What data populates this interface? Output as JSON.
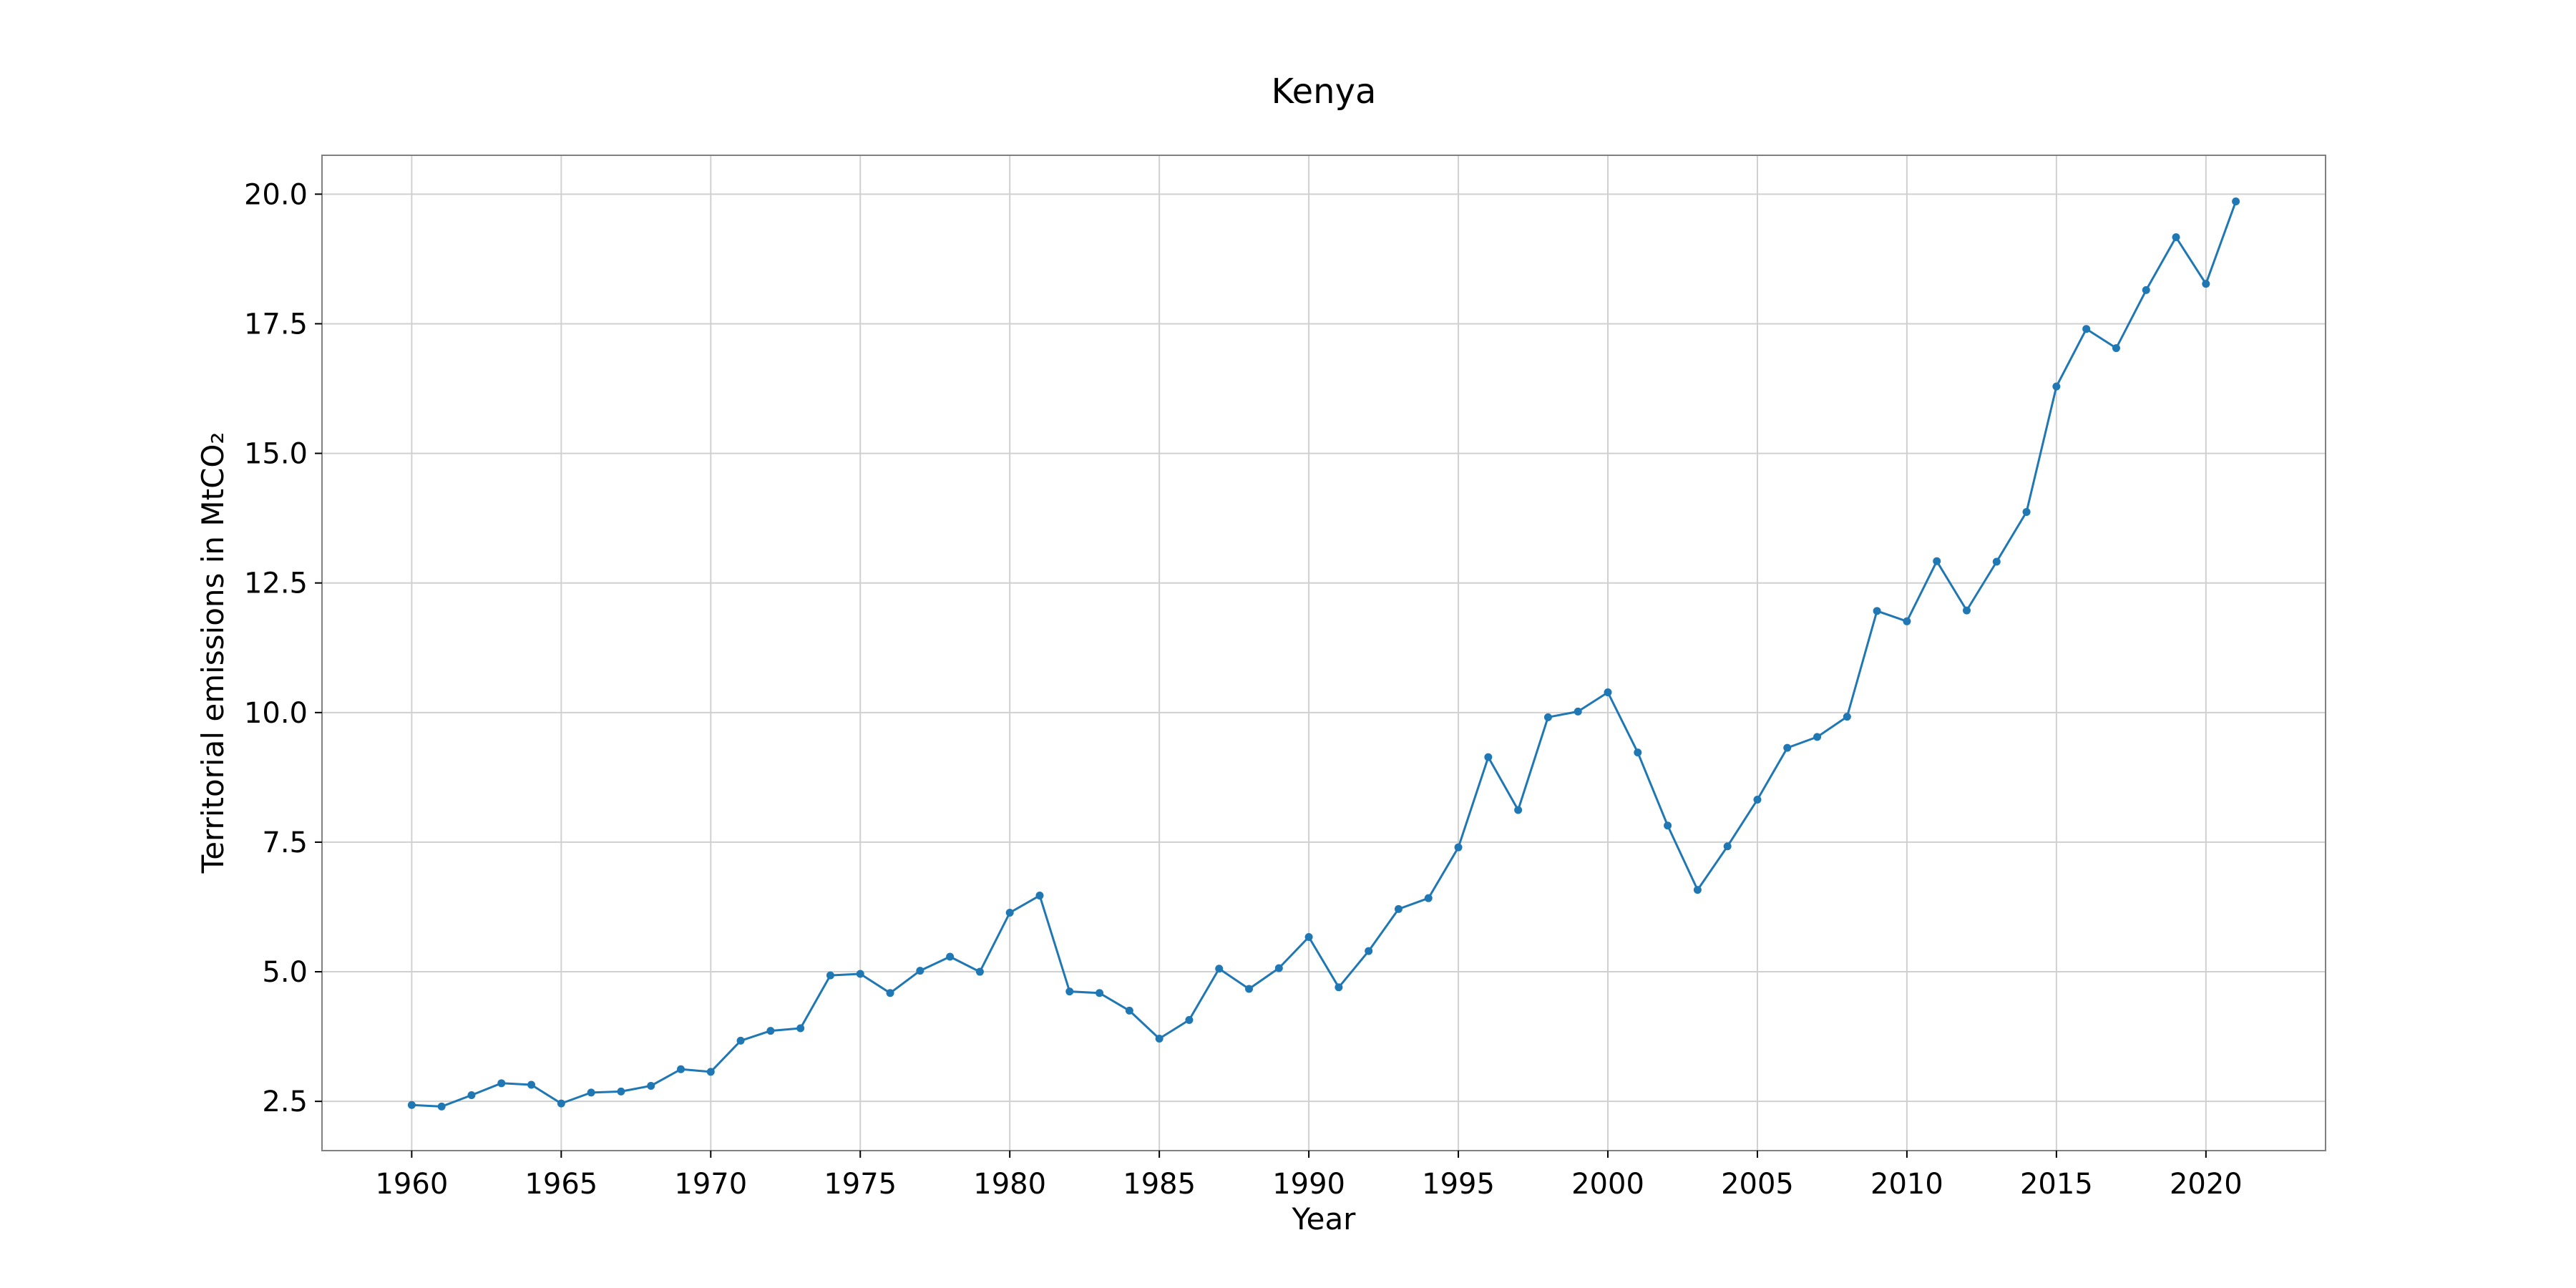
{
  "chart_data": {
    "type": "line",
    "title": "Kenya",
    "xlabel": "Year",
    "ylabel": "Territorial emissions in MtCO₂",
    "xlim": [
      1957,
      2024
    ],
    "ylim": [
      1.55,
      20.75
    ],
    "xticks": [
      1960,
      1965,
      1970,
      1975,
      1980,
      1985,
      1990,
      1995,
      2000,
      2005,
      2010,
      2015,
      2020
    ],
    "yticks": [
      2.5,
      5.0,
      7.5,
      10.0,
      12.5,
      15.0,
      17.5,
      20.0
    ],
    "grid": true,
    "legend": "none",
    "colors": {
      "line": "#1f77b4",
      "grid": "#d0d0d0",
      "frame": "#808080"
    },
    "series": [
      {
        "x": [
          1960,
          1961,
          1962,
          1963,
          1964,
          1965,
          1966,
          1967,
          1968,
          1969,
          1970,
          1971,
          1972,
          1973,
          1974,
          1975,
          1976,
          1977,
          1978,
          1979,
          1980,
          1981,
          1982,
          1983,
          1984,
          1985,
          1986,
          1987,
          1988,
          1989,
          1990,
          1991,
          1992,
          1993,
          1994,
          1995,
          1996,
          1997,
          1998,
          1999,
          2000,
          2001,
          2002,
          2003,
          2004,
          2005,
          2006,
          2007,
          2008,
          2009,
          2010,
          2011,
          2012,
          2013,
          2014,
          2015,
          2016,
          2017,
          2018,
          2019,
          2020,
          2021
        ],
        "values": [
          2.43,
          2.4,
          2.62,
          2.85,
          2.82,
          2.46,
          2.67,
          2.69,
          2.8,
          3.12,
          3.07,
          3.67,
          3.86,
          3.91,
          4.93,
          4.96,
          4.59,
          5.02,
          5.29,
          5.0,
          6.14,
          6.47,
          4.62,
          4.59,
          4.25,
          3.71,
          4.07,
          5.06,
          4.67,
          5.07,
          5.67,
          4.7,
          5.4,
          6.21,
          6.42,
          7.4,
          9.14,
          8.12,
          9.91,
          10.02,
          10.39,
          9.23,
          7.82,
          6.58,
          7.42,
          8.32,
          9.32,
          9.53,
          9.92,
          11.96,
          11.76,
          12.92,
          11.97,
          12.91,
          13.87,
          16.29,
          17.4,
          17.03,
          18.15,
          19.17,
          18.27,
          19.86
        ]
      }
    ]
  }
}
